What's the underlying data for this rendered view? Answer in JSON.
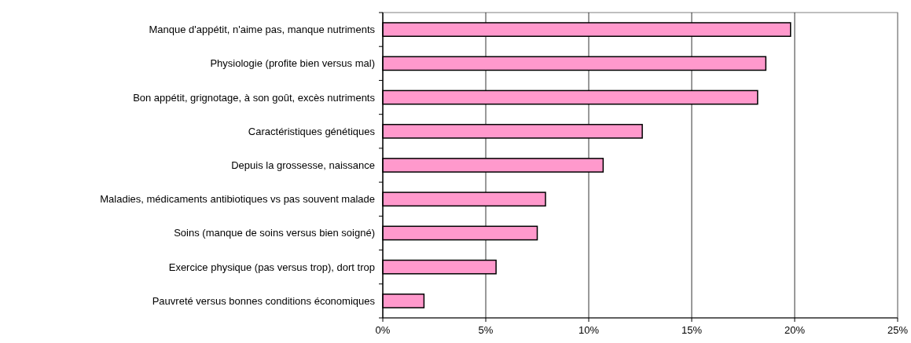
{
  "chart_data": {
    "type": "bar",
    "orientation": "horizontal",
    "categories": [
      "Manque d'appétit, n'aime pas, manque nutriments",
      "Physiologie (profite bien versus mal)",
      "Bon appétit, grignotage, à son goût, excès nutriments",
      "Caractéristiques génétiques",
      "Depuis la grossesse, naissance",
      "Maladies, médicaments antibiotiques vs pas souvent malade",
      "Soins (manque de soins versus bien soigné)",
      "Exercice physique (pas versus trop), dort trop",
      "Pauvreté versus bonnes conditions économiques"
    ],
    "values": [
      19.8,
      18.6,
      18.2,
      12.6,
      10.7,
      7.9,
      7.5,
      5.5,
      2.0
    ],
    "color": "#ff99cc",
    "xlim": [
      0,
      25
    ],
    "xticks": [
      {
        "value": 0,
        "label": "0%"
      },
      {
        "value": 5,
        "label": "5%"
      },
      {
        "value": 10,
        "label": "10%"
      },
      {
        "value": 15,
        "label": "15%"
      },
      {
        "value": 20,
        "label": "20%"
      },
      {
        "value": 25,
        "label": "25%"
      }
    ],
    "grid": "x"
  }
}
